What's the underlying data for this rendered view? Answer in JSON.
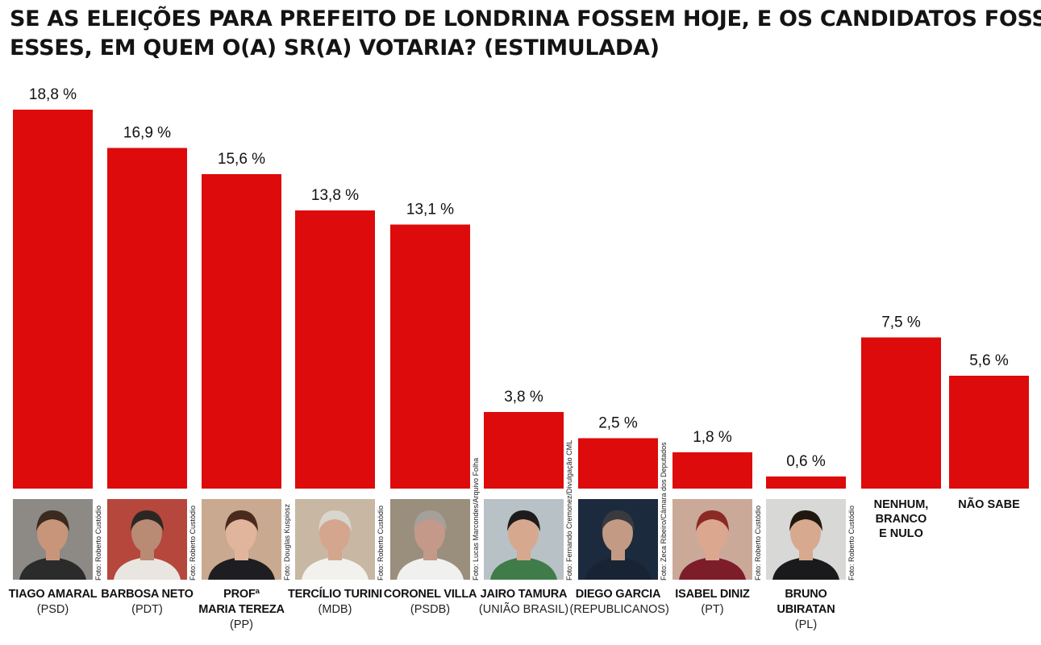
{
  "title_lines": [
    "SE AS ELEIÇÕES PARA PREFEITO DE LONDRINA FOSSEM  HOJE, E OS CANDIDATOS FOSSEM",
    "ESSES, EM QUEM O(A) SR(A) VOTARIA? (ESTIMULADA)"
  ],
  "chart_data": {
    "type": "bar",
    "categories": [
      "TIAGO AMARAL",
      "BARBOSA NETO",
      "PROFª MARIA TEREZA",
      "TERCÍLIO TURINI",
      "CORONEL VILLA",
      "JAIRO TAMURA",
      "DIEGO GARCIA",
      "ISABEL DINIZ",
      "BRUNO UBIRATAN",
      "NENHUM, BRANCO E NULO",
      "NÃO SABE"
    ],
    "values": [
      18.8,
      16.9,
      15.6,
      13.8,
      13.1,
      3.8,
      2.5,
      1.8,
      0.6,
      7.5,
      5.6
    ],
    "value_labels": [
      "18,8 %",
      "16,9 %",
      "15,6 %",
      "13,8 %",
      "13,1 %",
      "3,8 %",
      "2,5 %",
      "1,8 %",
      "0,6 %",
      "7,5 %",
      "5,6 %"
    ],
    "ylim": [
      0,
      18.8
    ],
    "bar_color": "#dd0b0b",
    "grid": false
  },
  "candidates": [
    {
      "name_lines": [
        "TIAGO AMARAL"
      ],
      "party": "(PSD)",
      "credit": "Foto: Roberto Custódio"
    },
    {
      "name_lines": [
        "BARBOSA NETO"
      ],
      "party": "(PDT)",
      "credit": "Foto: Roberto Custódio"
    },
    {
      "name_lines": [
        "PROFª",
        "MARIA TEREZA"
      ],
      "party": "(PP)",
      "credit": "Foto: Douglas Kuspiosz"
    },
    {
      "name_lines": [
        "TERCÍLIO TURINI"
      ],
      "party": "(MDB)",
      "credit": "Foto: Roberto Custódio"
    },
    {
      "name_lines": [
        "CORONEL VILLA"
      ],
      "party": "(PSDB)",
      "credit": "Foto: Lucas Marcondes/Arquivo Folha"
    },
    {
      "name_lines": [
        "JAIRO TAMURA"
      ],
      "party": "(UNIÃO BRASIL)",
      "credit": "Foto: Fernando Cremonez/Divulgação CML"
    },
    {
      "name_lines": [
        "DIEGO GARCIA"
      ],
      "party": "(REPUBLICANOS)",
      "credit": "Foto: Zeca Ribeiro/Câmara dos Deputados"
    },
    {
      "name_lines": [
        "ISABEL DINIZ"
      ],
      "party": "(PT)",
      "credit": "Foto: Roberto Custódio"
    },
    {
      "name_lines": [
        "BRUNO UBIRATAN"
      ],
      "party": "(PL)",
      "credit": "Foto: Roberto Custódio"
    }
  ],
  "extra_labels": [
    {
      "lines": [
        "NENHUM,",
        "BRANCO",
        "E NULO"
      ]
    },
    {
      "lines": [
        "NÃO SABE"
      ]
    }
  ],
  "photo_palette": [
    {
      "bg": "#8d8a86",
      "skin": "#c8957a",
      "hair": "#3a2a20",
      "shirt": "#2b2b2b"
    },
    {
      "bg": "#b5473c",
      "skin": "#b98a74",
      "hair": "#2d2724",
      "shirt": "#e9e6e2"
    },
    {
      "bg": "#c9a98f",
      "skin": "#e0b59c",
      "hair": "#4a2a1c",
      "shirt": "#1e1e22"
    },
    {
      "bg": "#c7b7a3",
      "skin": "#d5a68e",
      "hair": "#d9d6d0",
      "shirt": "#f2f1ee"
    },
    {
      "bg": "#9a8e7c",
      "skin": "#c4998a",
      "hair": "#a6a09a",
      "shirt": "#f0f0ee"
    },
    {
      "bg": "#b8c2c6",
      "skin": "#d6a88d",
      "hair": "#1c1c1c",
      "shirt": "#3f7c4a"
    },
    {
      "bg": "#1b2b3d",
      "skin": "#c39a84",
      "hair": "#3a3a3e",
      "shirt": "#182433"
    },
    {
      "bg": "#cba999",
      "skin": "#dca78f",
      "hair": "#8b2a24",
      "shirt": "#7e1d2a"
    },
    {
      "bg": "#d8d8d6",
      "skin": "#d7a98f",
      "hair": "#20180f",
      "shirt": "#1a1a1c"
    }
  ]
}
